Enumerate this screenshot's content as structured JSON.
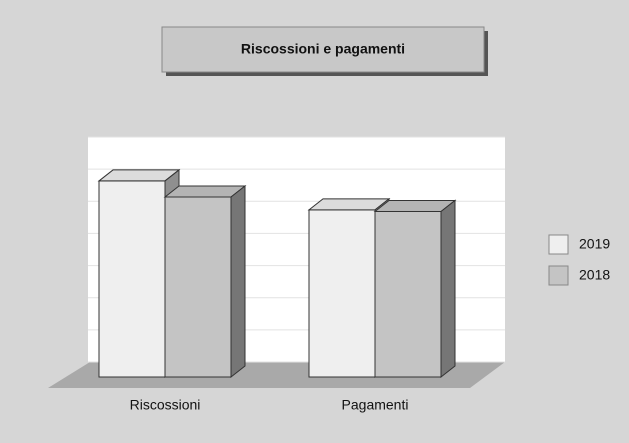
{
  "chart_data": {
    "type": "bar3d",
    "title": "Riscossioni e pagamenti",
    "categories": [
      "Riscossioni",
      "Pagamenti"
    ],
    "series": [
      {
        "name": "2019",
        "color": "#efefef",
        "values": [
          6.1,
          5.2
        ]
      },
      {
        "name": "2018",
        "color": "#c4c4c4",
        "values": [
          5.6,
          5.15
        ]
      }
    ],
    "ylim": [
      0,
      7
    ],
    "yticks": [
      0,
      1,
      2,
      3,
      4,
      5,
      6,
      7
    ],
    "grid": true,
    "legend": "right"
  }
}
